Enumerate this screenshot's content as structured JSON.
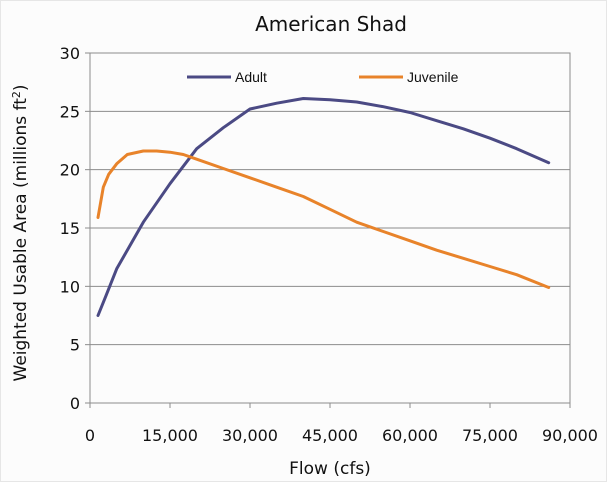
{
  "chart_data": {
    "type": "line",
    "title": "American Shad",
    "xlabel": "Flow (cfs)",
    "ylabel_main": "Weighted Usable Area (millions ft",
    "ylabel_sup": "2",
    "ylabel_close": ")",
    "xlim": [
      0,
      90000
    ],
    "ylim": [
      0,
      30
    ],
    "x_ticks": [
      0,
      15000,
      30000,
      45000,
      60000,
      75000,
      90000
    ],
    "x_tick_labels": [
      "0",
      "15,000",
      "30,000",
      "45,000",
      "60,000",
      "75,000",
      "90,000"
    ],
    "y_ticks": [
      0,
      5,
      10,
      15,
      20,
      25,
      30
    ],
    "y_tick_labels": [
      "0",
      "5",
      "10",
      "15",
      "20",
      "25",
      "30"
    ],
    "grid": "horizontal",
    "legend_position": "top",
    "series": [
      {
        "name": "Adult",
        "color": "#4b4a84",
        "x": [
          1500,
          3000,
          5000,
          7500,
          10000,
          15000,
          20000,
          25000,
          30000,
          35000,
          40000,
          45000,
          50000,
          55000,
          60000,
          65000,
          70000,
          75000,
          80000,
          86000
        ],
        "y": [
          7.5,
          9.2,
          11.5,
          13.5,
          15.5,
          18.8,
          21.8,
          23.6,
          25.2,
          25.7,
          26.1,
          26.0,
          25.8,
          25.4,
          24.9,
          24.2,
          23.5,
          22.7,
          21.8,
          20.6
        ]
      },
      {
        "name": "Juvenile",
        "color": "#e8832a",
        "x": [
          1500,
          2500,
          3500,
          5000,
          7000,
          10000,
          12500,
          15000,
          17500,
          20000,
          25000,
          30000,
          35000,
          40000,
          45000,
          50000,
          55000,
          60000,
          65000,
          70000,
          75000,
          80000,
          86000
        ],
        "y": [
          15.9,
          18.5,
          19.6,
          20.5,
          21.3,
          21.6,
          21.6,
          21.5,
          21.3,
          20.9,
          20.1,
          19.3,
          18.5,
          17.7,
          16.6,
          15.5,
          14.7,
          13.9,
          13.1,
          12.4,
          11.7,
          11.0,
          9.9
        ]
      }
    ]
  }
}
